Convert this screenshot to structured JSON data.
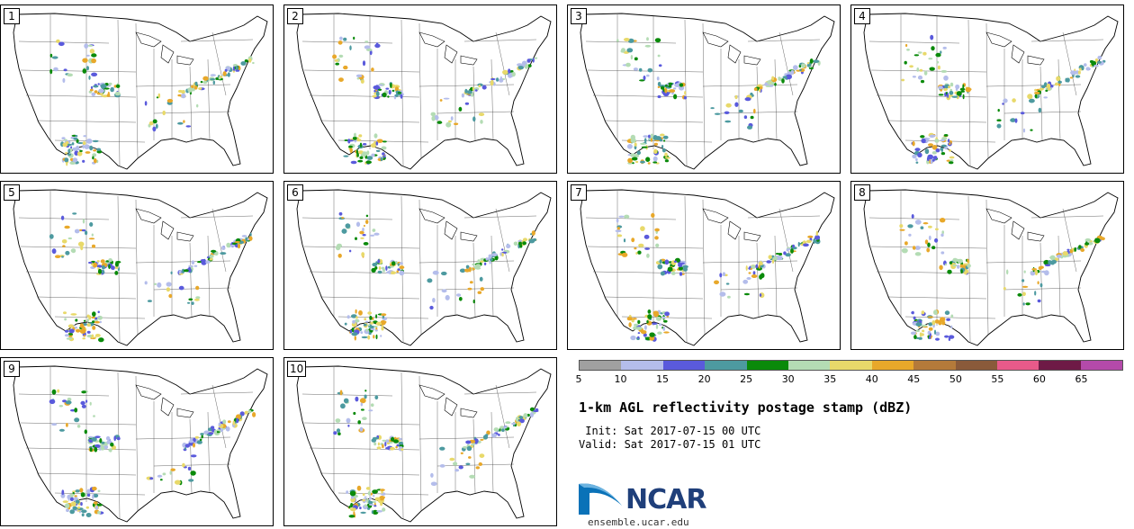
{
  "panels": [
    {
      "label": "1"
    },
    {
      "label": "2"
    },
    {
      "label": "3"
    },
    {
      "label": "4"
    },
    {
      "label": "5"
    },
    {
      "label": "6"
    },
    {
      "label": "7"
    },
    {
      "label": "8"
    },
    {
      "label": "9"
    },
    {
      "label": "10"
    }
  ],
  "colorbar": {
    "colors": [
      "#a0a0a0",
      "#b4bdeb",
      "#5a5adc",
      "#4d9aa0",
      "#0a8a0a",
      "#b4dcb4",
      "#e8d96a",
      "#e8a82a",
      "#b47a3a",
      "#8a5a3a",
      "#e85a8a",
      "#6e1a46",
      "#b44aaa"
    ],
    "ticks": [
      "5",
      "10",
      "15",
      "20",
      "25",
      "30",
      "35",
      "40",
      "45",
      "50",
      "55",
      "60",
      "65"
    ]
  },
  "title": "1-km AGL reflectivity postage stamp (dBZ)",
  "init_line": " Init: Sat 2017-07-15 00 UTC",
  "valid_line": "Valid: Sat 2017-07-15 01 UTC",
  "logo": {
    "text": "NCAR",
    "url": "ensemble.ucar.edu"
  }
}
